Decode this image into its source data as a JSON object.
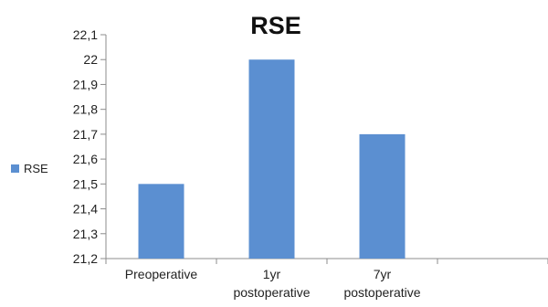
{
  "chart_data": {
    "type": "bar",
    "title": "RSE",
    "categories": [
      [
        "Preoperative"
      ],
      [
        "1yr",
        "postoperative"
      ],
      [
        "7yr",
        "postoperative"
      ],
      [
        ""
      ]
    ],
    "series": [
      {
        "name": "RSE",
        "values": [
          21.5,
          22.0,
          21.7,
          null
        ]
      }
    ],
    "yticks": [
      "21,2",
      "21,3",
      "21,4",
      "21,5",
      "21,6",
      "21,7",
      "21,8",
      "21,9",
      "22",
      "22,1"
    ],
    "ylim": [
      21.2,
      22.1
    ],
    "xlabel": "",
    "ylabel": "",
    "grid": false,
    "legend": "left",
    "colors": {
      "series": "#5b8fd1",
      "axis": "#8c8c8c"
    }
  }
}
